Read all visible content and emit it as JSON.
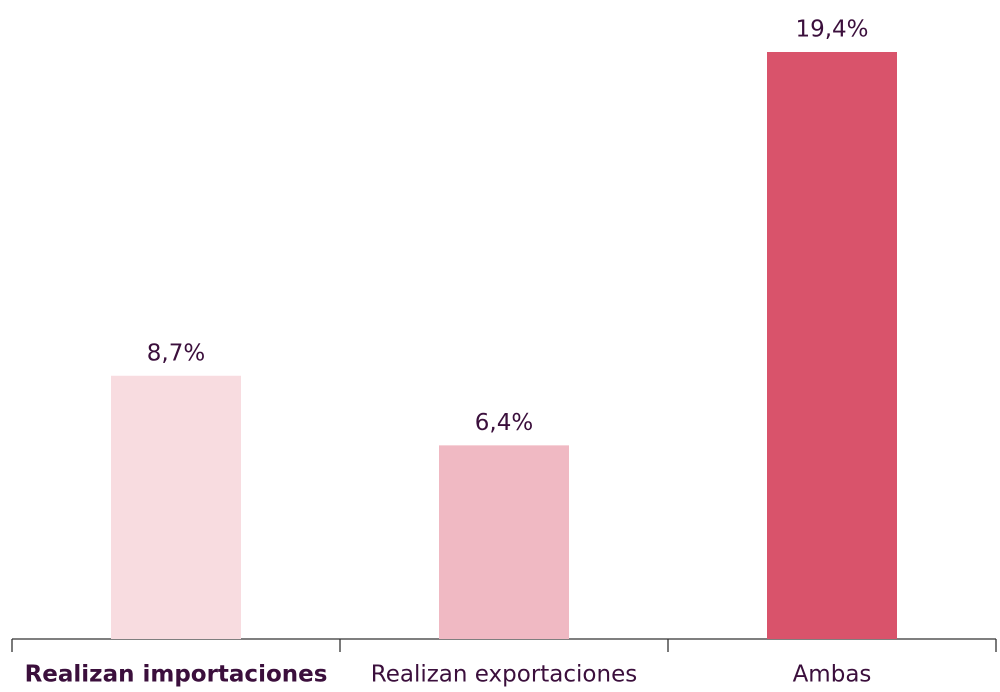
{
  "chart_data": {
    "type": "bar",
    "categories": [
      "Realizan importaciones",
      "Realizan exportaciones",
      "Ambas"
    ],
    "values": [
      8.7,
      6.4,
      19.4
    ],
    "value_labels": [
      "8,7%",
      "6,4%",
      "19,4%"
    ],
    "colors": [
      "#f8dce0",
      "#f0b9c3",
      "#d9536b"
    ]
  }
}
